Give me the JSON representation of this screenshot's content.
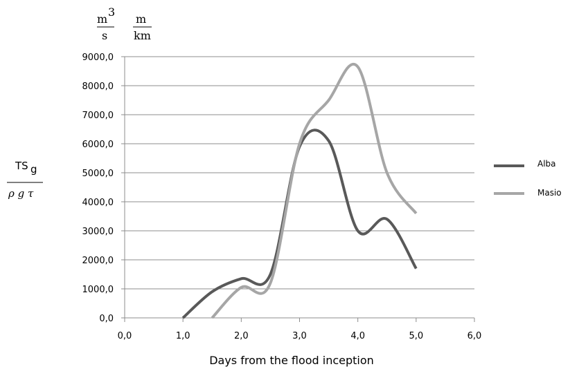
{
  "colors": {
    "Alba": "#595959",
    "Masio": "#a6a6a6",
    "grid": "#8c8c8c"
  },
  "units": {
    "num1": "m",
    "num1_sup": "3",
    "den1": "s",
    "num2": "m",
    "den2": "km"
  },
  "ylabel_expr": {
    "num": "TS",
    "num_sub": "g",
    "den": "ρ g  τ"
  },
  "chart_data": {
    "type": "line",
    "xlabel": "Days  from  the  flood  inception",
    "xlim": [
      0,
      6
    ],
    "ylim": [
      0,
      9000
    ],
    "grid": true,
    "legend_position": "right",
    "xticks": [
      "0,0",
      "1,0",
      "2,0",
      "3,0",
      "4,0",
      "5,0",
      "6,0"
    ],
    "yticks": [
      "0,0",
      "1000,0",
      "2000,0",
      "3000,0",
      "4000,0",
      "5000,0",
      "6000,0",
      "7000,0",
      "8000,0",
      "9000,0"
    ],
    "series": [
      {
        "name": "Alba",
        "x": [
          1.0,
          1.5,
          2.0,
          2.5,
          3.0,
          3.5,
          4.0,
          4.5,
          5.0
        ],
        "y": [
          0,
          900,
          1350,
          1500,
          5900,
          6100,
          3000,
          3400,
          1700
        ]
      },
      {
        "name": "Masio",
        "x": [
          1.5,
          2.0,
          2.5,
          3.0,
          3.5,
          4.0,
          4.5,
          5.0
        ],
        "y": [
          0,
          1050,
          1200,
          6000,
          7500,
          8650,
          5000,
          3600
        ]
      }
    ]
  }
}
